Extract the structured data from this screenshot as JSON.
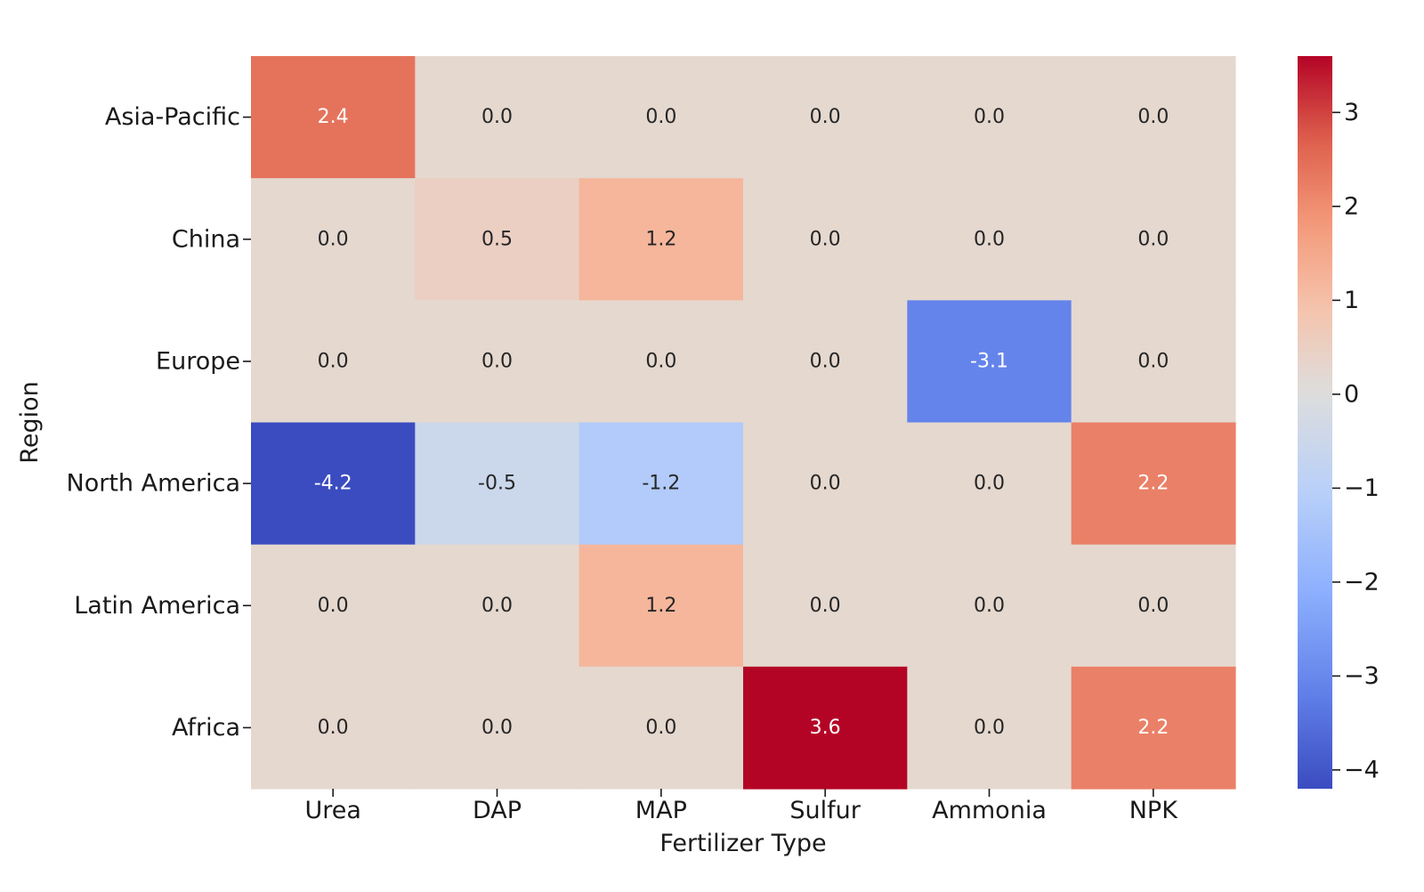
{
  "chart_data": {
    "type": "heatmap",
    "xlabel": "Fertilizer Type",
    "ylabel": "Region",
    "x_categories": [
      "Urea",
      "DAP",
      "MAP",
      "Sulfur",
      "Ammonia",
      "NPK"
    ],
    "y_categories": [
      "Asia-Pacific",
      "China",
      "Europe",
      "North America",
      "Latin America",
      "Africa"
    ],
    "values": [
      [
        2.4,
        0.0,
        0.0,
        0.0,
        0.0,
        0.0
      ],
      [
        0.0,
        0.5,
        1.2,
        0.0,
        0.0,
        0.0
      ],
      [
        0.0,
        0.0,
        0.0,
        0.0,
        -3.1,
        0.0
      ],
      [
        -4.2,
        -0.5,
        -1.2,
        0.0,
        0.0,
        2.2
      ],
      [
        0.0,
        0.0,
        1.2,
        0.0,
        0.0,
        0.0
      ],
      [
        0.0,
        0.0,
        0.0,
        3.6,
        0.0,
        2.2
      ]
    ],
    "annotation_format": "0.0",
    "colormap": "coolwarm",
    "colorbar": {
      "range": [
        -4.2,
        3.6
      ],
      "center": 0,
      "ticks": [
        3,
        2,
        1,
        0,
        -1,
        -2,
        -3,
        -4
      ],
      "tick_labels": [
        "3",
        "2",
        "1",
        "0",
        "−1",
        "−2",
        "−3",
        "−4"
      ]
    },
    "grid": false,
    "legend": "colorbar-right"
  }
}
